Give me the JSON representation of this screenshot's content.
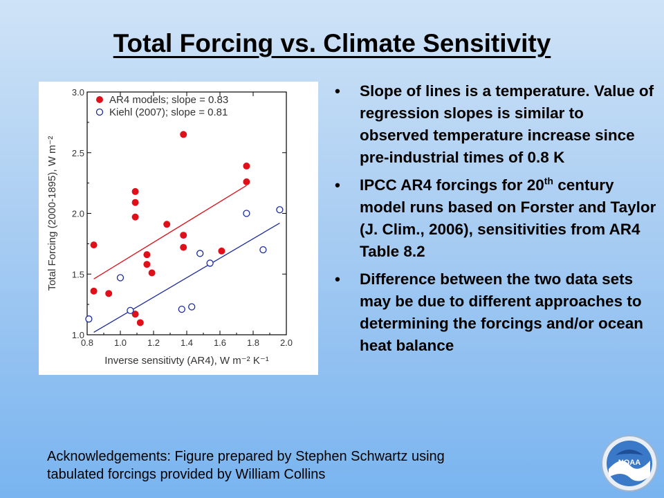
{
  "slide": {
    "title": "Total Forcing vs. Climate Sensitivity",
    "bullets": [
      {
        "text": "Slope of lines is a temperature. Value of regression slopes is similar to observed temperature increase since pre-industrial times of 0.8 K"
      },
      {
        "text_before": "IPCC AR4 forcings for 20",
        "sup": "th",
        "text_after": " century model runs based on Forster and Taylor (J. Clim., 2006), sensitivities from AR4 Table 8.2"
      },
      {
        "text": "Difference between the two data sets may be due to different approaches to determining the forcings and/or ocean heat balance"
      }
    ],
    "bullet_symbol": "•",
    "acknowledgement": [
      "Acknowledgements:  Figure prepared by Stephen Schwartz using",
      "tabulated forcings provided by William Collins"
    ],
    "logo_text": "NOAA"
  },
  "chart_data": {
    "type": "scatter",
    "xlabel": "Inverse sensitivty (AR4), W m⁻² K⁻¹",
    "ylabel": "Total Forcing (2000-1895), W m⁻²",
    "xlim": [
      0.8,
      2.0
    ],
    "ylim": [
      1.0,
      3.0
    ],
    "xticks": [
      "0.8",
      "1.0",
      "1.2",
      "1.4",
      "1.6",
      "1.8",
      "2.0"
    ],
    "yticks": [
      "1.0",
      "1.5",
      "2.0",
      "2.5",
      "3.0"
    ],
    "legend_position": "top-left",
    "series": [
      {
        "name": "AR4 models; slope = 0.83",
        "color": "#e0101a",
        "marker": "filled-circle",
        "points": [
          [
            0.84,
            1.74
          ],
          [
            0.84,
            1.36
          ],
          [
            0.93,
            1.34
          ],
          [
            1.09,
            2.18
          ],
          [
            1.09,
            2.09
          ],
          [
            1.09,
            1.97
          ],
          [
            1.09,
            1.17
          ],
          [
            1.12,
            1.1
          ],
          [
            1.16,
            1.66
          ],
          [
            1.16,
            1.58
          ],
          [
            1.19,
            1.51
          ],
          [
            1.28,
            1.91
          ],
          [
            1.38,
            2.65
          ],
          [
            1.38,
            1.82
          ],
          [
            1.38,
            1.72
          ],
          [
            1.61,
            1.69
          ],
          [
            1.76,
            2.39
          ],
          [
            1.76,
            2.26
          ]
        ],
        "fit": [
          [
            0.84,
            1.46
          ],
          [
            1.76,
            2.23
          ]
        ]
      },
      {
        "name": "Kiehl (2007); slope = 0.81",
        "color": "#1a2a9c",
        "marker": "open-circle",
        "points": [
          [
            0.81,
            1.13
          ],
          [
            1.0,
            1.47
          ],
          [
            1.06,
            1.2
          ],
          [
            1.37,
            1.21
          ],
          [
            1.43,
            1.23
          ],
          [
            1.48,
            1.67
          ],
          [
            1.54,
            1.59
          ],
          [
            1.76,
            2.0
          ],
          [
            1.86,
            1.7
          ],
          [
            1.96,
            2.03
          ]
        ],
        "fit": [
          [
            0.84,
            1.02
          ],
          [
            1.96,
            1.92
          ]
        ]
      }
    ]
  }
}
